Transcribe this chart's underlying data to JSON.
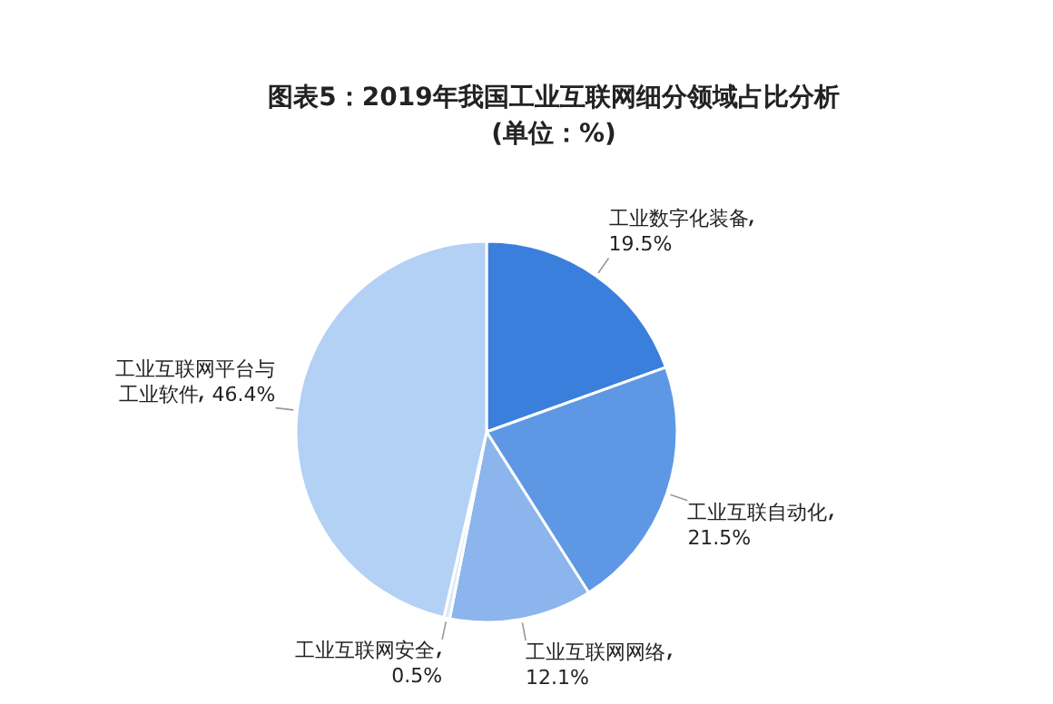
{
  "chart_data": {
    "type": "pie",
    "title": "图表5：2019年我国工业互联网细分领域占比分析(单位：%)",
    "categories": [
      "工业数字化装备",
      "工业互联自动化",
      "工业互联网网络",
      "工业互联网安全",
      "工业互联网平台与工业软件"
    ],
    "values": [
      19.5,
      21.5,
      12.1,
      0.5,
      46.4
    ],
    "value_labels": [
      "19.5%",
      "21.5%",
      "12.1%",
      "0.5%",
      "46.4%"
    ],
    "colors": [
      "#3b7fdc",
      "#5e98e4",
      "#8bb5ec",
      "#dbe8f9",
      "#b3d0f5"
    ]
  }
}
